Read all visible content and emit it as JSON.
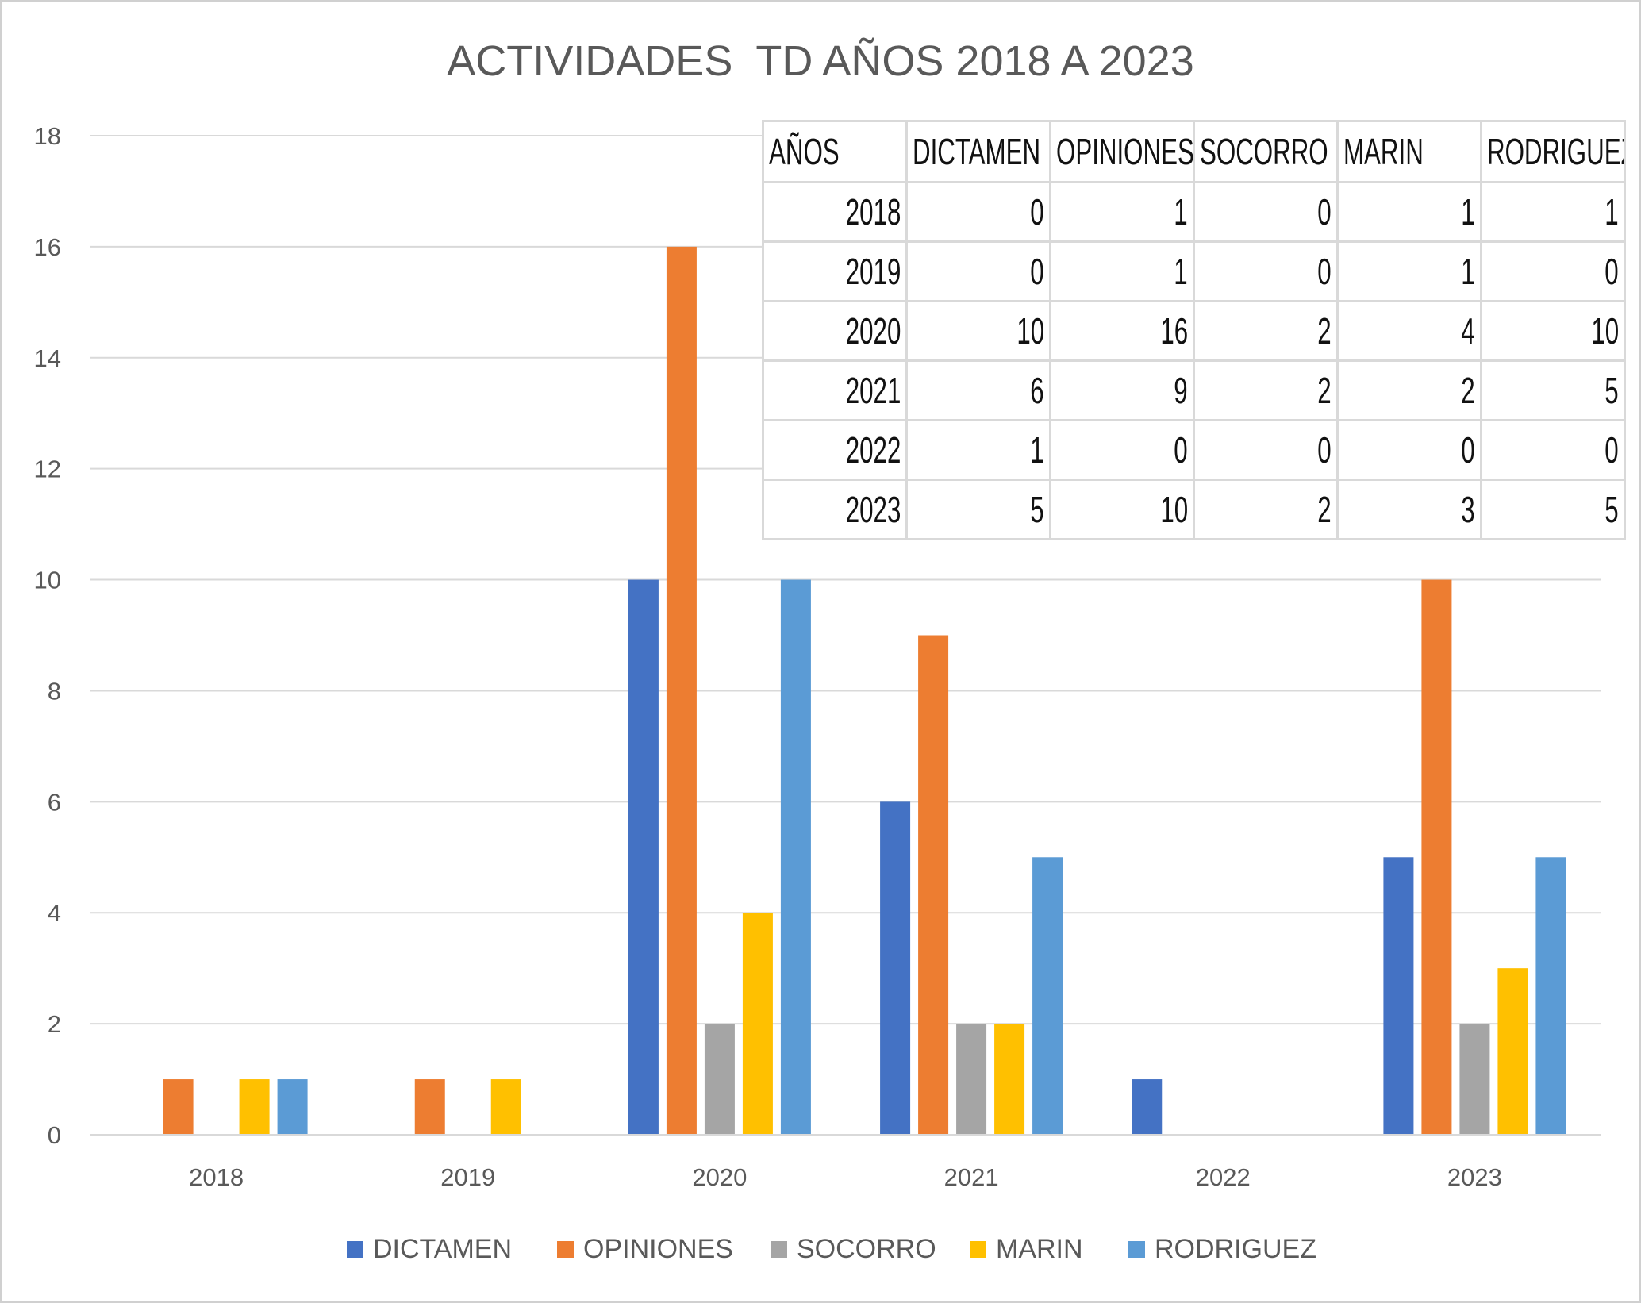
{
  "chart_data": {
    "type": "bar",
    "title": "ACTIVIDADES  TD AÑOS 2018 A 2023",
    "xlabel": "",
    "ylabel": "",
    "categories": [
      "2018",
      "2019",
      "2020",
      "2021",
      "2022",
      "2023"
    ],
    "ylim": [
      0,
      18
    ],
    "yticks": [
      "0",
      "2",
      "4",
      "6",
      "8",
      "10",
      "12",
      "14",
      "16",
      "18"
    ],
    "grid": true,
    "legend_position": "bottom",
    "series": [
      {
        "name": "DICTAMEN",
        "color": "#4472C4",
        "values": [
          0,
          0,
          10,
          6,
          1,
          5
        ]
      },
      {
        "name": "OPINIONES",
        "color": "#ED7D31",
        "values": [
          1,
          1,
          16,
          9,
          0,
          10
        ]
      },
      {
        "name": "SOCORRO",
        "color": "#A5A5A5",
        "values": [
          0,
          0,
          2,
          2,
          0,
          2
        ]
      },
      {
        "name": "MARIN",
        "color": "#FFC000",
        "values": [
          1,
          1,
          4,
          2,
          0,
          3
        ]
      },
      {
        "name": "RODRIGUEZ",
        "color": "#5B9BD5",
        "values": [
          1,
          0,
          10,
          5,
          0,
          5
        ]
      }
    ]
  },
  "table": {
    "headers": [
      "AÑOS",
      "DICTAMEN",
      "OPINIONES",
      "SOCORRO",
      "MARIN",
      "RODRIGUEZ"
    ],
    "rows": [
      [
        "2018",
        "0",
        "1",
        "0",
        "1",
        "1"
      ],
      [
        "2019",
        "0",
        "1",
        "0",
        "1",
        "0"
      ],
      [
        "2020",
        "10",
        "16",
        "2",
        "4",
        "10"
      ],
      [
        "2021",
        "6",
        "9",
        "2",
        "2",
        "5"
      ],
      [
        "2022",
        "1",
        "0",
        "0",
        "0",
        "0"
      ],
      [
        "2023",
        "5",
        "10",
        "2",
        "3",
        "5"
      ]
    ]
  }
}
